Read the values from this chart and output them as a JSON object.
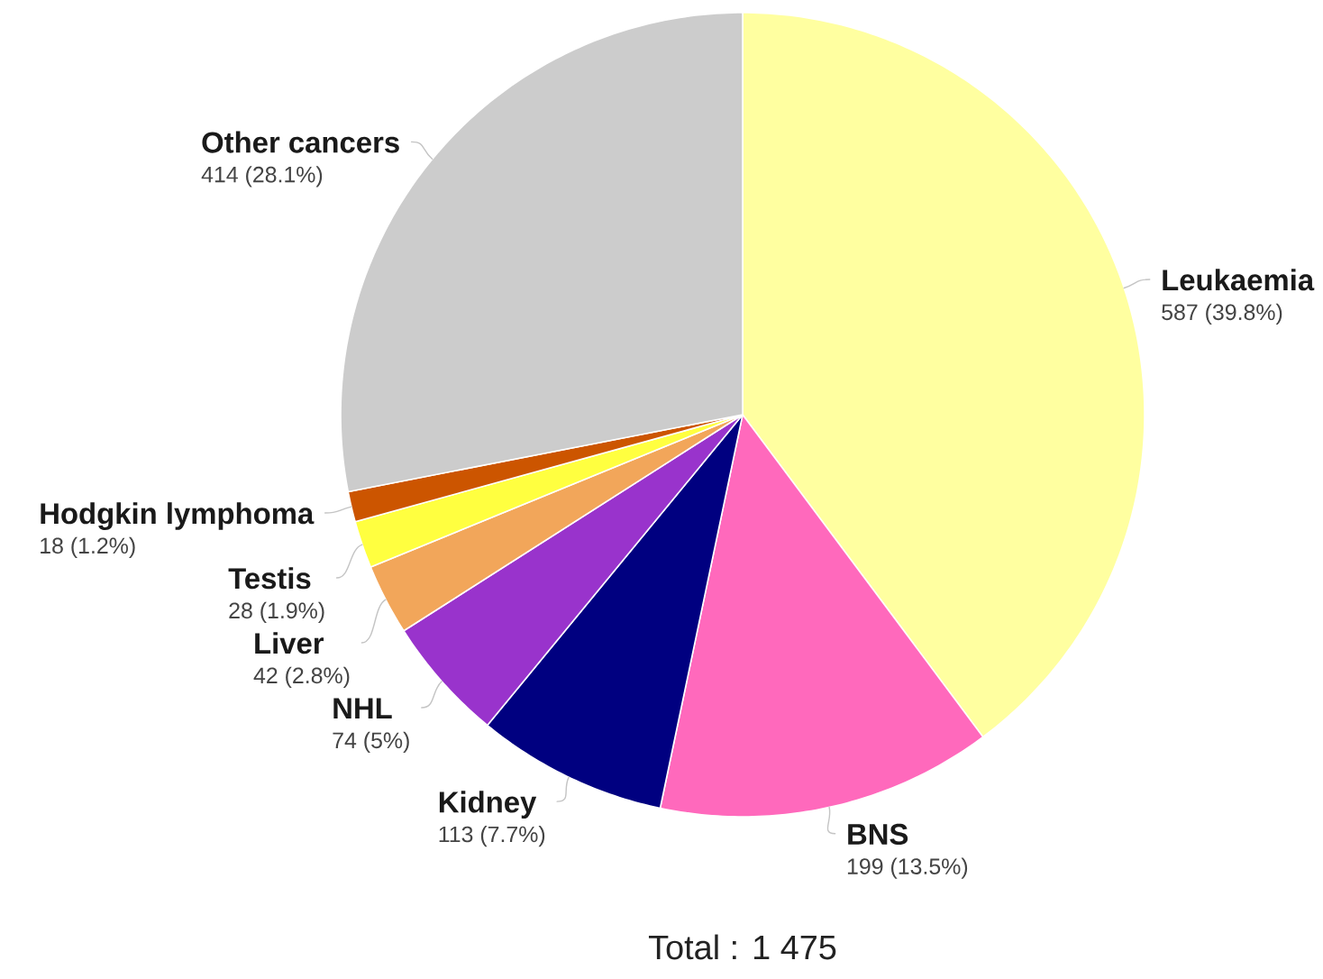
{
  "chart_data": {
    "type": "pie",
    "categories": [
      "Leukaemia",
      "BNS",
      "Kidney",
      "NHL",
      "Liver",
      "Testis",
      "Hodgkin lymphoma",
      "Other cancers"
    ],
    "values": [
      587,
      199,
      113,
      74,
      42,
      28,
      18,
      414
    ],
    "colors": [
      "#ffffa0",
      "#ff69bc",
      "#000080",
      "#9933cc",
      "#f2a65a",
      "#ffff40",
      "#cc5500",
      "#cccccc"
    ],
    "value_labels": [
      "587 (39.8%)",
      "199 (13.5%)",
      "113 (7.7%)",
      "74 (5%)",
      "42 (2.8%)",
      "28 (1.9%)",
      "18 (1.2%)",
      "414 (28.1%)"
    ],
    "annotations": [
      "Total : 1 475"
    ]
  }
}
